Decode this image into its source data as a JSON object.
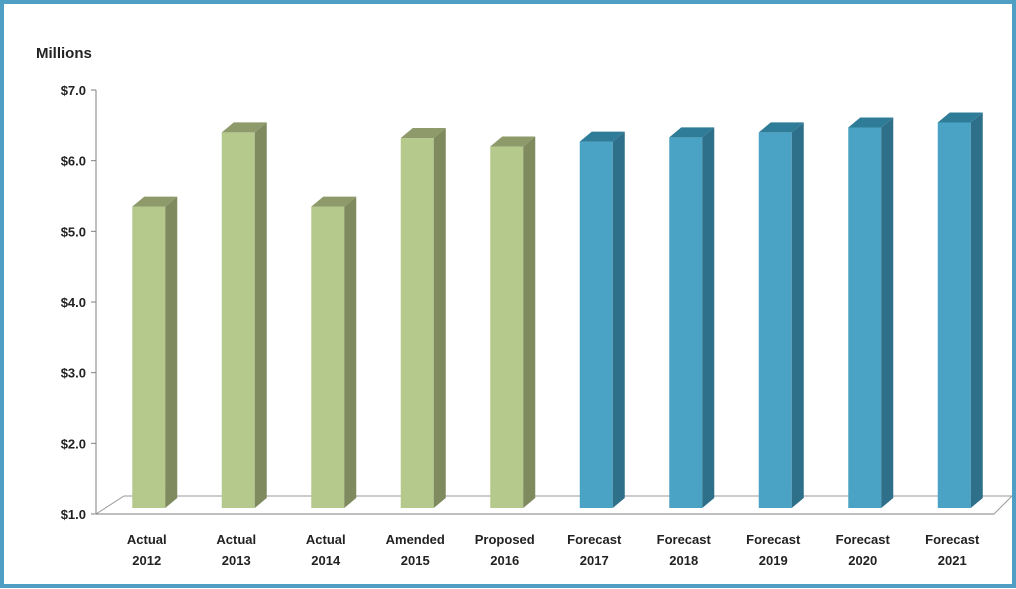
{
  "chart_data": {
    "type": "bar",
    "unit_label": "Millions",
    "categories": [
      [
        "Actual",
        "2012"
      ],
      [
        "Actual",
        "2013"
      ],
      [
        "Actual",
        "2014"
      ],
      [
        "Amended",
        "2015"
      ],
      [
        "Proposed",
        "2016"
      ],
      [
        "Forecast",
        "2017"
      ],
      [
        "Forecast",
        "2018"
      ],
      [
        "Forecast",
        "2019"
      ],
      [
        "Forecast",
        "2020"
      ],
      [
        "Forecast",
        "2021"
      ]
    ],
    "values": [
      5.35,
      6.4,
      5.35,
      6.32,
      6.2,
      6.27,
      6.33,
      6.4,
      6.47,
      6.54
    ],
    "bar_groups": [
      "actual",
      "actual",
      "actual",
      "actual",
      "actual",
      "forecast",
      "forecast",
      "forecast",
      "forecast",
      "forecast"
    ],
    "ylim": [
      1,
      7
    ],
    "yticks": [
      1,
      2,
      3,
      4,
      5,
      6,
      7
    ],
    "ytick_labels": [
      "$1.0",
      "$2.0",
      "$3.0",
      "$4.0",
      "$5.0",
      "$6.0",
      "$7.0"
    ],
    "grid": false,
    "legend": "none",
    "colors": {
      "actual": {
        "front": "#b5c98d",
        "side": "#7f8a5f",
        "top": "#8f9a6a"
      },
      "forecast": {
        "front": "#4aa3c4",
        "side": "#2e6f8a",
        "top": "#2f7c99"
      },
      "frame": "#4f9ec4",
      "axis": "#7f7f7f"
    }
  }
}
